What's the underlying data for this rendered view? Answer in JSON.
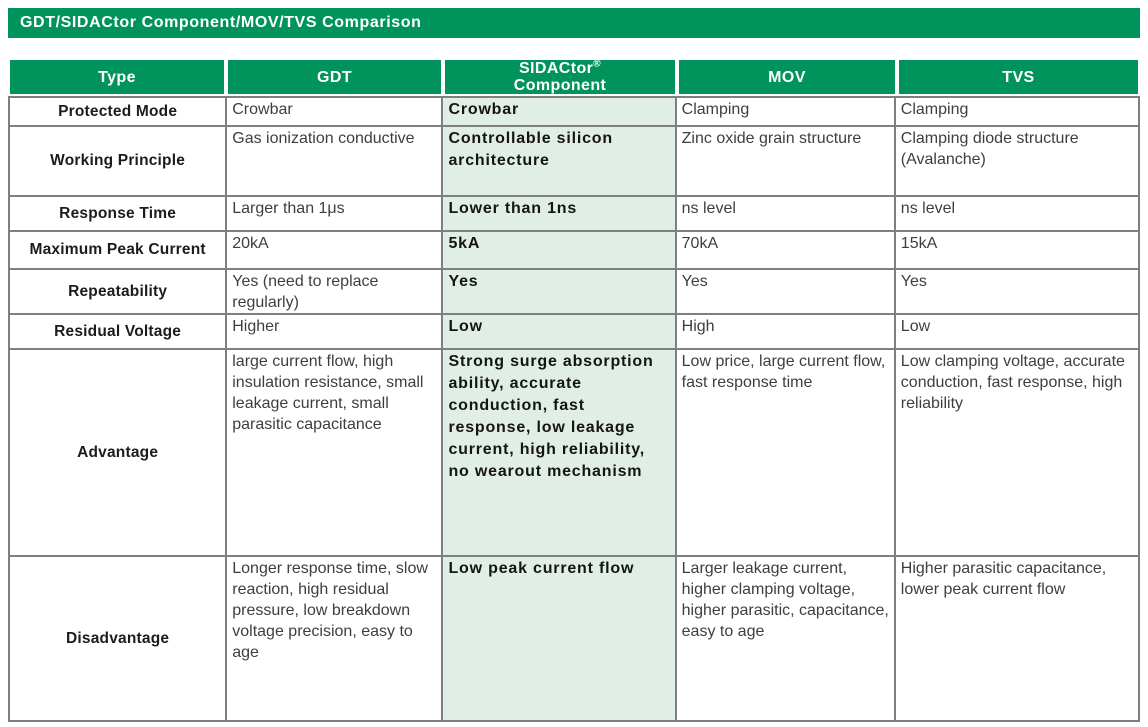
{
  "colors": {
    "brand_green": "#00945c",
    "highlight_green": "#e1eee6",
    "border_gray": "#7f7f7f",
    "header_text": "#ffffff",
    "body_text": "#3e3e3e"
  },
  "title_bar": {
    "text": "GDT/SIDACtor Component/MOV/TVS Comparison"
  },
  "table": {
    "header": {
      "type": "Type",
      "gdt": "GDT",
      "sidactor_line1": "SIDACtor",
      "sidactor_sup": "®",
      "sidactor_line2": "Component",
      "mov": "MOV",
      "tvs": "TVS"
    },
    "rows": [
      {
        "label": "Protected Mode",
        "gdt": "Crowbar",
        "sidactor": "Crowbar",
        "mov": "Clamping",
        "tvs": "Clamping"
      },
      {
        "label": "Working Principle",
        "gdt": "Gas ionization conductive",
        "sidactor": "Controllable silicon architecture",
        "mov": "Zinc oxide grain structure",
        "tvs": "Clamping diode structure (Avalanche)"
      },
      {
        "label": "Response Time",
        "gdt": "Larger than 1μs",
        "sidactor": "Lower than 1ns",
        "mov": "ns level",
        "tvs": "ns level"
      },
      {
        "label": "Maximum Peak Current",
        "gdt": "20kA",
        "sidactor": "5kA",
        "mov": "70kA",
        "tvs": "15kA"
      },
      {
        "label": "Repeatability",
        "gdt": "Yes (need to replace regularly)",
        "sidactor": "Yes",
        "mov": "Yes",
        "tvs": "Yes"
      },
      {
        "label": "Residual Voltage",
        "gdt": "Higher",
        "sidactor": "Low",
        "mov": "High",
        "tvs": "Low"
      },
      {
        "label": "Advantage",
        "gdt": "large current flow, high insulation resistance, small leakage current, small parasitic capacitance",
        "sidactor": "Strong surge absorption ability, accurate conduction, fast response, low leakage current, high reliability, no wearout mechanism",
        "mov": "Low price, large current flow, fast response time",
        "tvs": "Low clamping voltage, accurate conduction, fast response, high reliability"
      },
      {
        "label": "Disadvantage",
        "gdt": "Longer response time, slow reaction, high residual pressure, low breakdown voltage precision, easy to age",
        "sidactor": "Low peak current flow",
        "mov": "Larger leakage current, higher clamping voltage, higher parasitic, capacitance, easy to age",
        "tvs": "Higher parasitic capacitance, lower peak current flow"
      }
    ]
  }
}
